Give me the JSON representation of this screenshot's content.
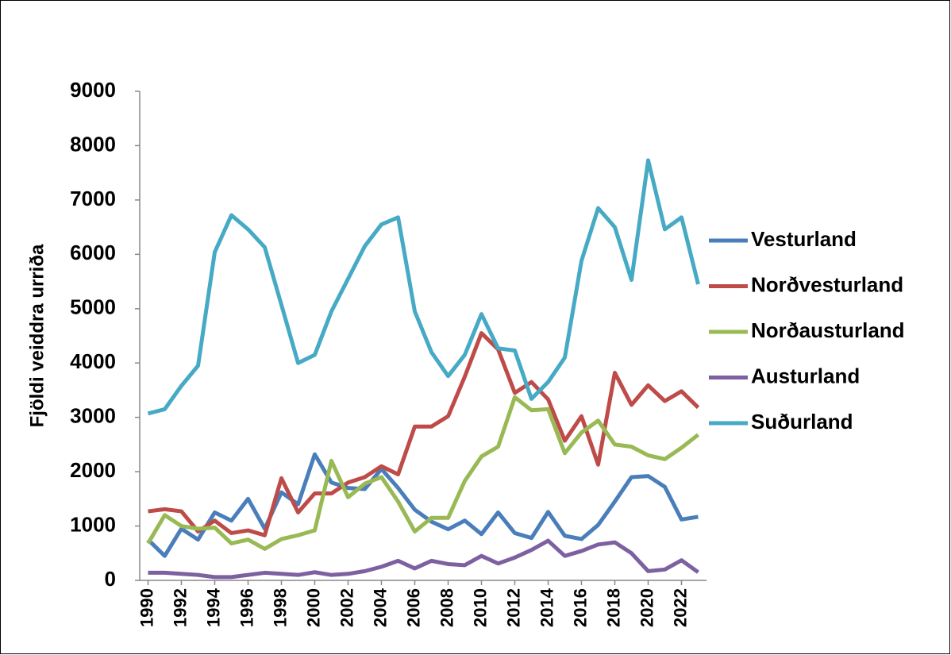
{
  "chart_data": {
    "type": "line",
    "y_label": "Fjöldi veiddra urriða",
    "x": [
      1990,
      1991,
      1992,
      1993,
      1994,
      1995,
      1996,
      1997,
      1998,
      1999,
      2000,
      2001,
      2002,
      2003,
      2004,
      2005,
      2006,
      2007,
      2008,
      2009,
      2010,
      2011,
      2012,
      2013,
      2014,
      2015,
      2016,
      2017,
      2018,
      2019,
      2020,
      2021,
      2022,
      2023
    ],
    "xlim": [
      1989.5,
      2023.5
    ],
    "xticks": [
      1990,
      1992,
      1994,
      1996,
      1998,
      2000,
      2002,
      2004,
      2006,
      2008,
      2010,
      2012,
      2014,
      2016,
      2018,
      2020,
      2022
    ],
    "ylim": [
      0,
      9000
    ],
    "yticks": [
      0,
      1000,
      2000,
      3000,
      4000,
      5000,
      6000,
      7000,
      8000,
      9000
    ],
    "grid": false,
    "legend": "right",
    "series": [
      {
        "name": "Vesturland",
        "color": "#4a7ebb",
        "values": [
          750,
          450,
          950,
          750,
          1250,
          1100,
          1500,
          950,
          1620,
          1400,
          2320,
          1800,
          1700,
          1680,
          2050,
          1700,
          1300,
          1080,
          940,
          1100,
          850,
          1250,
          870,
          780,
          1260,
          820,
          760,
          1020,
          1450,
          1900,
          1920,
          1720,
          1120,
          1170
        ]
      },
      {
        "name": "Norðvesturland",
        "color": "#be4b48",
        "values": [
          1270,
          1310,
          1270,
          900,
          1100,
          870,
          920,
          830,
          1880,
          1250,
          1600,
          1600,
          1800,
          1900,
          2100,
          1950,
          2830,
          2830,
          3020,
          3750,
          4550,
          4250,
          3450,
          3650,
          3330,
          2570,
          3020,
          2130,
          3820,
          3230,
          3590,
          3300,
          3480,
          3180
        ]
      },
      {
        "name": "Norðausturland",
        "color": "#98b954",
        "values": [
          680,
          1200,
          1000,
          950,
          970,
          680,
          750,
          580,
          760,
          830,
          920,
          2200,
          1530,
          1780,
          1900,
          1450,
          900,
          1150,
          1150,
          1830,
          2280,
          2460,
          3370,
          3130,
          3150,
          2340,
          2720,
          2940,
          2500,
          2460,
          2300,
          2230,
          2440,
          2680
        ]
      },
      {
        "name": "Austurland",
        "color": "#7d60a0",
        "values": [
          140,
          140,
          120,
          100,
          60,
          60,
          100,
          140,
          120,
          100,
          150,
          100,
          120,
          170,
          250,
          360,
          220,
          360,
          300,
          280,
          450,
          310,
          420,
          560,
          730,
          450,
          540,
          660,
          700,
          500,
          170,
          200,
          370,
          150
        ]
      },
      {
        "name": "Suðurland",
        "color": "#46aac5",
        "values": [
          3070,
          3150,
          3580,
          3950,
          6040,
          6720,
          6460,
          6130,
          5070,
          4000,
          4150,
          4950,
          5550,
          6150,
          6550,
          6680,
          4950,
          4200,
          3760,
          4150,
          4900,
          4270,
          4230,
          3340,
          3650,
          4100,
          5880,
          6850,
          6500,
          5530,
          7730,
          6460,
          6680,
          5450
        ]
      }
    ]
  }
}
